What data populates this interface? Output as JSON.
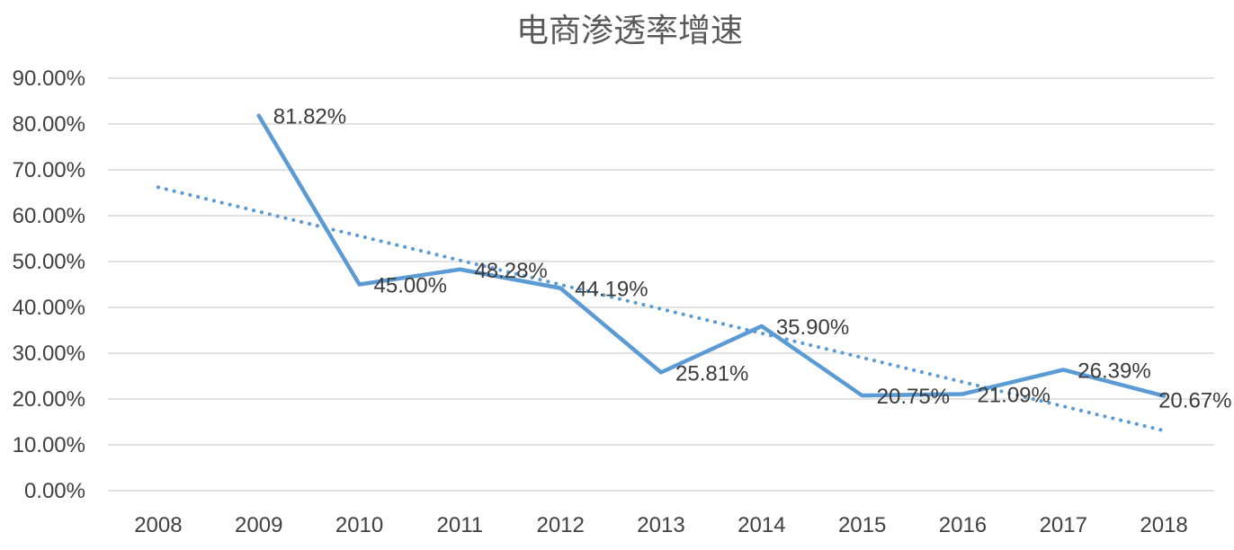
{
  "page": {
    "background": "#FFFFFF"
  },
  "chart": {
    "title": "电商渗透率增速",
    "colors": {
      "series": "#5B9BD5",
      "trendline": "#5B9BD5",
      "gridline": "#D9D9D9",
      "axis_text": "#404040",
      "data_label_text": "#3B3B3B",
      "title_text": "#595959"
    }
  },
  "chart_data": {
    "type": "line",
    "title": "电商渗透率增速",
    "categories": [
      "2008",
      "2009",
      "2010",
      "2011",
      "2012",
      "2013",
      "2014",
      "2015",
      "2016",
      "2017",
      "2018"
    ],
    "series": [
      {
        "name": "电商渗透率增速",
        "values": [
          null,
          81.82,
          45.0,
          48.28,
          44.19,
          25.81,
          35.9,
          20.75,
          21.09,
          26.39,
          20.67
        ],
        "point_labels": [
          null,
          "81.82%",
          "45.00%",
          "48.28%",
          "44.19%",
          "25.81%",
          "35.90%",
          "20.75%",
          "21.09%",
          "26.39%",
          "20.67%"
        ]
      }
    ],
    "trendline": {
      "style": "dotted",
      "fit": "linear",
      "start_category": "2008",
      "start_value": 66.2,
      "end_category": "2018",
      "end_value": 13.1
    },
    "xlabel": "",
    "ylabel": "",
    "ylim": [
      0,
      90
    ],
    "ytick_step": 10,
    "ytick_labels": [
      "0.00%",
      "10.00%",
      "20.00%",
      "30.00%",
      "40.00%",
      "50.00%",
      "60.00%",
      "70.00%",
      "80.00%",
      "90.00%"
    ],
    "grid": "horizontal",
    "legend": "none"
  }
}
